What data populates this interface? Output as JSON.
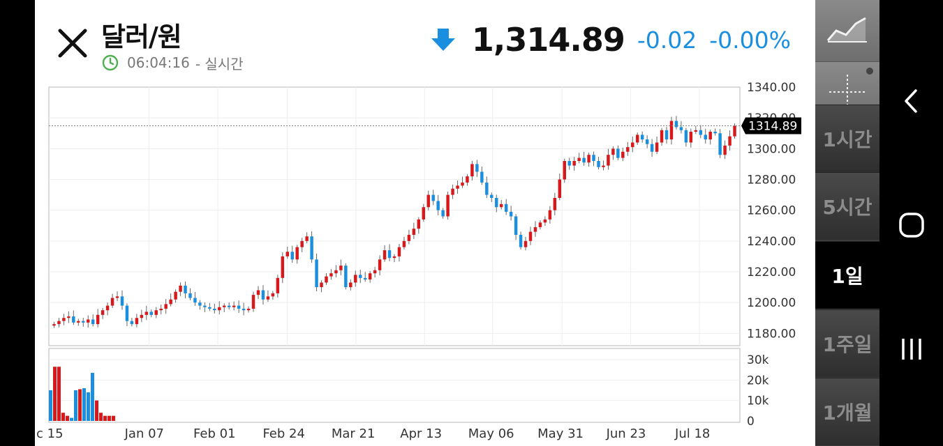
{
  "header": {
    "title": "달러/원",
    "time": "06:04:16",
    "time_suffix": "- 실시간",
    "price": "1,314.89",
    "change": "-0.02",
    "change_pct": "-0.00%",
    "direction_icon": "arrow-down-icon"
  },
  "sidebar": {
    "tools": [
      {
        "name": "line-chart-icon"
      },
      {
        "name": "crosshair-icon"
      }
    ],
    "periods": [
      {
        "label": "1시간",
        "active": false
      },
      {
        "label": "5시간",
        "active": false
      },
      {
        "label": "1일",
        "active": true
      },
      {
        "label": "1주일",
        "active": false
      },
      {
        "label": "1개월",
        "active": false
      }
    ]
  },
  "navbar": [
    {
      "name": "back-icon"
    },
    {
      "name": "home-icon"
    },
    {
      "name": "recents-icon"
    }
  ],
  "colors": {
    "up": "#d7191c",
    "down": "#1a8fe0",
    "accent": "#1a8fe0",
    "clock": "#4caf50"
  },
  "chart_data": {
    "type": "candlestick",
    "price_axis": {
      "ticks": [
        "1340.00",
        "1320.00",
        "1300.00",
        "1280.00",
        "1260.00",
        "1240.00",
        "1220.00",
        "1200.00",
        "1180.00"
      ],
      "range": [
        1172,
        1340
      ]
    },
    "volume_axis": {
      "ticks": [
        "30k",
        "20k",
        "10k",
        "0"
      ],
      "range": [
        0,
        30000
      ]
    },
    "x_ticks": [
      "c 15",
      "Jan 07",
      "Feb 01",
      "Feb 24",
      "Mar 21",
      "Apr 13",
      "May 06",
      "May 31",
      "Jun 23",
      "Jul 18"
    ],
    "current_price_label": "1314.89",
    "current_price": 1314.89,
    "closes": [
      1186,
      1188,
      1190,
      1191,
      1187,
      1188,
      1187,
      1189,
      1186,
      1192,
      1195,
      1198,
      1203,
      1204,
      1198,
      1188,
      1186,
      1190,
      1192,
      1194,
      1192,
      1195,
      1196,
      1199,
      1202,
      1207,
      1211,
      1206,
      1203,
      1200,
      1198,
      1197,
      1196,
      1195,
      1197,
      1198,
      1197,
      1198,
      1196,
      1195,
      1196,
      1205,
      1208,
      1202,
      1204,
      1206,
      1216,
      1230,
      1233,
      1228,
      1236,
      1240,
      1243,
      1228,
      1210,
      1213,
      1217,
      1219,
      1221,
      1224,
      1210,
      1213,
      1218,
      1216,
      1215,
      1219,
      1221,
      1228,
      1234,
      1229,
      1230,
      1236,
      1240,
      1244,
      1248,
      1254,
      1262,
      1270,
      1266,
      1260,
      1256,
      1270,
      1274,
      1276,
      1278,
      1282,
      1290,
      1285,
      1278,
      1270,
      1268,
      1262,
      1264,
      1259,
      1256,
      1244,
      1236,
      1240,
      1246,
      1249,
      1252,
      1254,
      1260,
      1268,
      1280,
      1292,
      1289,
      1292,
      1294,
      1291,
      1296,
      1292,
      1288,
      1289,
      1296,
      1300,
      1294,
      1298,
      1301,
      1304,
      1309,
      1306,
      1303,
      1298,
      1304,
      1312,
      1306,
      1318,
      1314,
      1312,
      1304,
      1311,
      1312,
      1309,
      1306,
      1311,
      1310,
      1296,
      1302,
      1308,
      1314.89
    ],
    "volumes": [
      15000,
      26500,
      26500,
      4000,
      2500,
      1500,
      15000,
      15500,
      16000,
      14000,
      23500,
      10000,
      4000,
      2500,
      2500,
      2500
    ],
    "volume_dir": [
      "down",
      "up",
      "up",
      "up",
      "up",
      "down",
      "down",
      "up",
      "down",
      "down",
      "down",
      "up",
      "up",
      "up",
      "up",
      "up"
    ]
  }
}
